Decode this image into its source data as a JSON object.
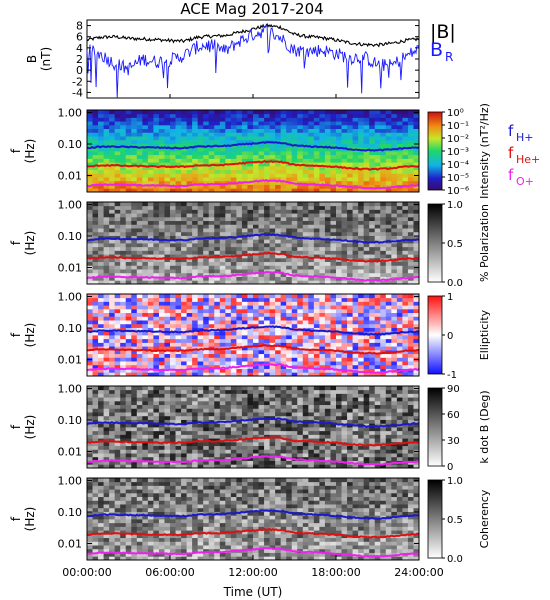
{
  "title": "ACE Mag 2017-204",
  "xaxis": {
    "label": "Time (UT)",
    "ticks": [
      "00:00:00",
      "06:00:00",
      "12:00:00",
      "18:00:00",
      "24:00:00"
    ],
    "range_hours": [
      0,
      24
    ]
  },
  "freq_ticks": [
    "1.00",
    "0.10",
    "0.01"
  ],
  "freq_range_hz": [
    0.003,
    1.2
  ],
  "freq_scale": "log",
  "freq_ylabel_top": "f",
  "freq_ylabel_bottom": "(Hz)",
  "colors": {
    "total_field": "#000000",
    "radial_field": "#1a1aff",
    "f_H": "#1a1acc",
    "f_He": "#dd1111",
    "f_O": "#ee22ee"
  },
  "chart_data": [
    {
      "type": "line",
      "panel": "B",
      "ylabel_top": "B",
      "ylabel_bottom": "(nT)",
      "yticks": [
        "8",
        "6",
        "4",
        "2",
        "0",
        "-2",
        "-4"
      ],
      "ylim": [
        -5,
        9
      ],
      "x_hours": [
        0,
        1,
        2,
        3,
        4,
        5,
        6,
        7,
        8,
        9,
        10,
        11,
        12,
        13,
        14,
        15,
        16,
        17,
        18,
        19,
        20,
        21,
        22,
        23,
        24
      ],
      "series": [
        {
          "name": "|B|",
          "color": "#000000",
          "values": [
            5.4,
            5.9,
            6.0,
            5.7,
            5.6,
            5.5,
            5.3,
            5.2,
            5.9,
            6.1,
            6.2,
            6.8,
            7.4,
            8.0,
            7.7,
            6.4,
            6.0,
            5.8,
            5.4,
            4.9,
            4.6,
            4.5,
            4.8,
            5.3,
            5.6
          ]
        },
        {
          "name": "B",
          "subscript": "R",
          "color": "#1a1aff",
          "values": [
            3.6,
            2.8,
            1.2,
            0.2,
            2.0,
            1.5,
            1.8,
            2.6,
            4.2,
            4.6,
            3.4,
            5.2,
            6.4,
            7.2,
            5.8,
            3.6,
            3.4,
            3.6,
            3.0,
            2.2,
            2.4,
            1.0,
            0.8,
            2.4,
            3.8
          ]
        }
      ]
    },
    {
      "type": "heatmap",
      "panel": "intensity",
      "colorbar_label": "Intensity (nT²/Hz)",
      "colorbar_ticks": [
        "10⁰",
        "10⁻¹",
        "10⁻²",
        "10⁻³",
        "10⁻⁴",
        "10⁻⁵",
        "10⁻⁶"
      ],
      "legend": [
        {
          "label": "f",
          "sub": "H+",
          "color": "#1a1acc"
        },
        {
          "label": "f",
          "sub": "He+",
          "color": "#dd1111"
        },
        {
          "label": "f",
          "sub": "O+",
          "color": "#ee22ee"
        }
      ]
    },
    {
      "type": "heatmap",
      "panel": "polarization",
      "colorbar_label": "% Polarization",
      "colorbar_ticks": [
        "1.0",
        "0.5",
        "0.0"
      ]
    },
    {
      "type": "heatmap",
      "panel": "ellipticity",
      "colorbar_label": "Ellipticity",
      "colorbar_ticks": [
        "1",
        "0",
        "-1"
      ]
    },
    {
      "type": "heatmap",
      "panel": "kdotb",
      "colorbar_label": "k dot B (Deg)",
      "colorbar_ticks": [
        "90",
        "60",
        "30",
        "0"
      ]
    },
    {
      "type": "heatmap",
      "panel": "coherency",
      "colorbar_label": "Coherency",
      "colorbar_ticks": [
        "1.0",
        "0.5",
        "0.0"
      ]
    },
    {
      "type": "line",
      "panel": "gyrofrequencies",
      "x_hours": [
        0,
        1,
        2,
        3,
        4,
        5,
        6,
        7,
        8,
        9,
        10,
        11,
        12,
        13,
        14,
        15,
        16,
        17,
        18,
        19,
        20,
        21,
        22,
        23,
        24
      ],
      "series": [
        {
          "name": "f_H+",
          "units": "Hz",
          "values": [
            0.075,
            0.082,
            0.083,
            0.08,
            0.079,
            0.077,
            0.075,
            0.074,
            0.083,
            0.085,
            0.087,
            0.095,
            0.104,
            0.112,
            0.108,
            0.09,
            0.084,
            0.081,
            0.076,
            0.069,
            0.064,
            0.063,
            0.067,
            0.074,
            0.078
          ]
        },
        {
          "name": "f_He+",
          "units": "Hz",
          "values": [
            0.019,
            0.021,
            0.021,
            0.02,
            0.02,
            0.019,
            0.019,
            0.019,
            0.021,
            0.021,
            0.022,
            0.024,
            0.026,
            0.028,
            0.027,
            0.022,
            0.021,
            0.02,
            0.019,
            0.017,
            0.016,
            0.016,
            0.017,
            0.019,
            0.02
          ]
        },
        {
          "name": "f_O+",
          "units": "Hz",
          "values": [
            0.0047,
            0.0051,
            0.0052,
            0.005,
            0.0049,
            0.0048,
            0.0047,
            0.0046,
            0.0052,
            0.0053,
            0.0054,
            0.0059,
            0.0065,
            0.007,
            0.0068,
            0.0056,
            0.0053,
            0.0051,
            0.0048,
            0.0043,
            0.004,
            0.0039,
            0.0042,
            0.0046,
            0.0049
          ]
        }
      ]
    }
  ]
}
